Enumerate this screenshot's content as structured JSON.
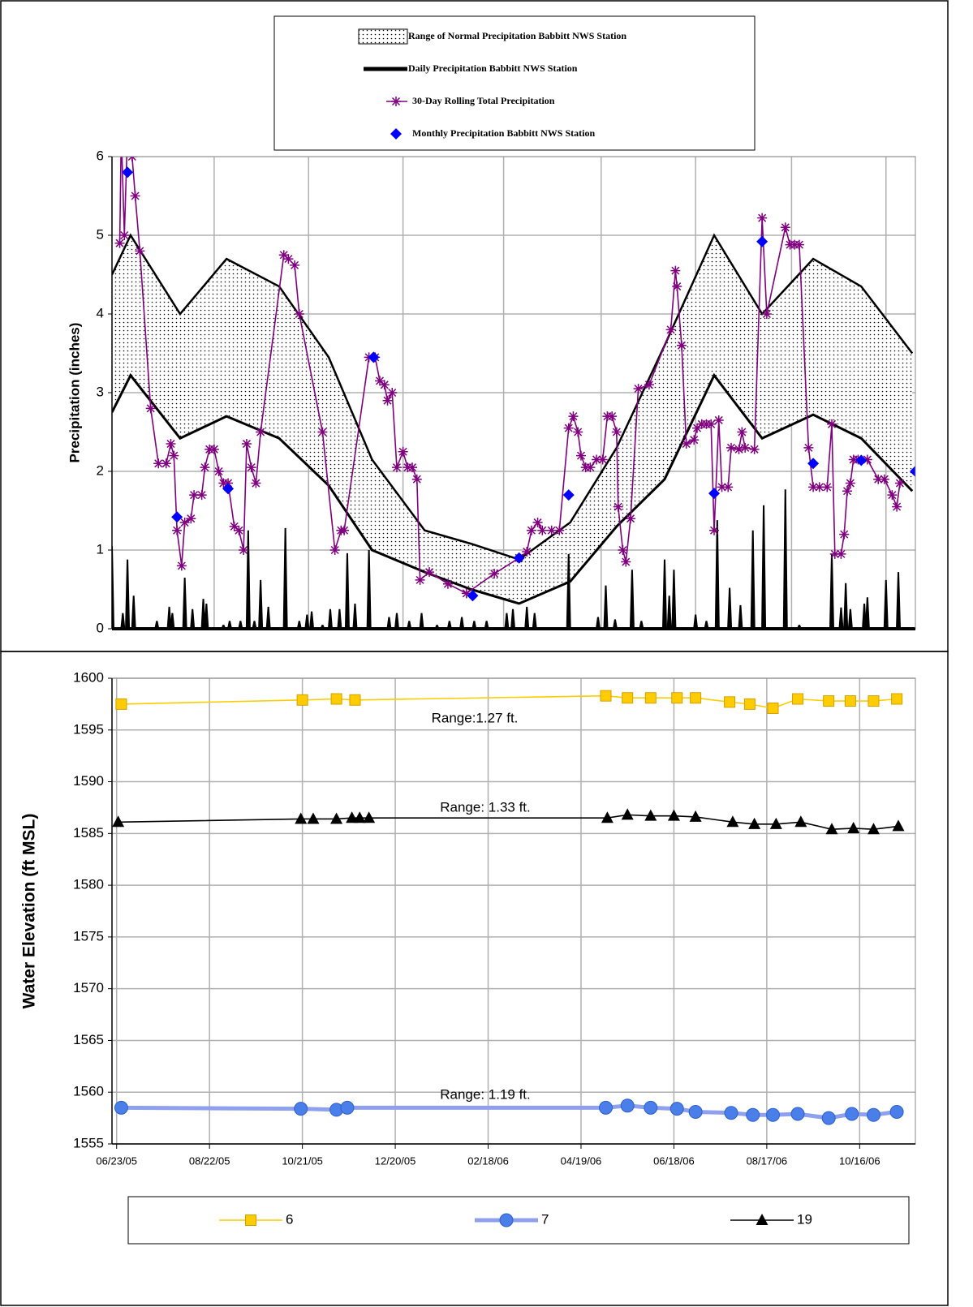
{
  "chart_data": [
    {
      "type": "combo",
      "y_label": "Precipitation (inches)",
      "xlim": [
        0,
        519
      ],
      "xticks": [
        66,
        127,
        188,
        253,
        316,
        377,
        439,
        500
      ],
      "ylim": [
        0,
        6
      ],
      "yticks": [
        0,
        1,
        2,
        3,
        4,
        5,
        6
      ],
      "grid": true,
      "series": [
        {
          "name": "Range of Normal Precipitation Babbitt NWS Station",
          "type": "band",
          "color": "#000000",
          "x": [
            0,
            12,
            44,
            74,
            108,
            140,
            168,
            202,
            232,
            263,
            296,
            326,
            357,
            389,
            420,
            453,
            484,
            517
          ],
          "upper": [
            4.5,
            5.0,
            4.0,
            4.7,
            4.35,
            3.45,
            2.15,
            1.25,
            1.08,
            0.88,
            1.35,
            2.3,
            3.6,
            5.0,
            4.0,
            4.7,
            4.35,
            3.5
          ],
          "lower": [
            2.75,
            3.22,
            2.42,
            2.7,
            2.42,
            1.82,
            1.0,
            0.72,
            0.5,
            0.32,
            0.6,
            1.3,
            1.9,
            3.22,
            2.42,
            2.72,
            2.42,
            1.75
          ]
        },
        {
          "name": "Daily Precipitation Babbitt NWS Station",
          "type": "bar",
          "color": "#000000",
          "x": [
            0,
            7,
            10,
            14,
            29,
            37,
            39,
            47,
            52,
            59,
            61,
            72,
            76,
            83,
            88,
            92,
            96,
            101,
            112,
            121,
            126,
            129,
            136,
            141,
            147,
            152,
            157,
            166,
            179,
            184,
            192,
            200,
            210,
            218,
            226,
            234,
            242,
            255,
            259,
            268,
            273,
            295,
            314,
            319,
            325,
            336,
            342,
            357,
            360,
            363,
            377,
            384,
            391,
            399,
            406,
            414,
            421,
            435,
            444,
            465,
            471,
            474,
            477,
            486,
            488,
            500,
            508
          ],
          "values": [
            1.05,
            0.2,
            0.88,
            0.42,
            0.1,
            0.28,
            0.2,
            0.65,
            0.25,
            0.38,
            0.32,
            0.05,
            0.1,
            0.1,
            1.25,
            0.1,
            0.62,
            0.28,
            1.28,
            0.1,
            0.18,
            0.22,
            0.05,
            0.25,
            0.25,
            0.96,
            0.32,
            1.0,
            0.15,
            0.2,
            0.1,
            0.2,
            0.05,
            0.1,
            0.15,
            0.1,
            0.1,
            0.2,
            0.25,
            0.28,
            0.2,
            0.95,
            0.15,
            0.55,
            0.12,
            0.75,
            0.1,
            0.88,
            0.42,
            0.75,
            0.18,
            0.1,
            1.38,
            0.52,
            0.3,
            1.25,
            1.57,
            1.77,
            0.05,
            0.95,
            0.27,
            0.58,
            0.25,
            0.32,
            0.4,
            0.62,
            0.72
          ]
        },
        {
          "name": "30-Day Rolling Total Precipitation",
          "type": "line",
          "color": "#800080",
          "marker": "asterisk",
          "x": [
            5,
            6,
            8,
            10,
            13,
            15,
            18,
            25,
            30,
            35,
            38,
            40,
            42,
            45,
            47,
            51,
            53,
            58,
            60,
            63,
            66,
            69,
            72,
            75,
            79,
            82,
            85,
            87,
            90,
            93,
            96,
            111,
            114,
            118,
            121,
            136,
            144,
            148,
            150,
            166,
            170,
            173,
            176,
            178,
            181,
            184,
            188,
            191,
            194,
            197,
            199,
            205,
            217,
            229,
            247,
            263,
            268,
            271,
            275,
            278,
            284,
            289,
            295,
            298,
            301,
            303,
            306,
            309,
            313,
            317,
            320,
            323,
            326,
            327,
            330,
            332,
            335,
            340,
            347,
            361,
            364,
            365,
            368,
            371,
            376,
            378,
            381,
            384,
            387,
            389,
            392,
            394,
            398,
            400,
            405,
            407,
            409,
            415,
            420,
            423,
            435,
            438,
            441,
            444,
            450,
            453,
            457,
            462,
            465,
            467,
            471,
            473,
            475,
            477,
            479,
            482,
            488,
            495,
            499,
            504,
            507,
            509
          ],
          "values": [
            4.9,
            6.3,
            5.0,
            6.3,
            6.0,
            5.5,
            4.8,
            2.8,
            2.1,
            2.1,
            2.35,
            2.2,
            1.25,
            0.8,
            1.35,
            1.4,
            1.7,
            1.7,
            2.05,
            2.28,
            2.28,
            2.0,
            1.85,
            1.85,
            1.3,
            1.25,
            1.0,
            2.35,
            2.05,
            1.85,
            2.5,
            4.75,
            4.7,
            4.62,
            4.0,
            2.5,
            1.0,
            1.25,
            1.25,
            3.45,
            3.45,
            3.15,
            3.1,
            2.9,
            3.0,
            2.05,
            2.25,
            2.05,
            2.05,
            1.9,
            0.62,
            0.72,
            0.57,
            0.45,
            0.7,
            0.9,
            0.98,
            1.25,
            1.35,
            1.25,
            1.25,
            1.25,
            2.55,
            2.7,
            2.5,
            2.2,
            2.05,
            2.05,
            2.15,
            2.15,
            2.7,
            2.7,
            2.5,
            1.55,
            1.0,
            0.85,
            1.4,
            3.05,
            3.1,
            3.8,
            4.55,
            4.35,
            3.6,
            2.35,
            2.4,
            2.55,
            2.6,
            2.6,
            2.6,
            1.25,
            2.65,
            1.8,
            1.8,
            2.3,
            2.28,
            2.5,
            2.3,
            2.28,
            5.22,
            4.0,
            5.1,
            4.88,
            4.88,
            4.88,
            2.3,
            1.8,
            1.8,
            1.8,
            2.6,
            0.95,
            0.95,
            1.2,
            1.75,
            1.85,
            2.15,
            2.15,
            2.15,
            1.9,
            1.9,
            1.7,
            1.55,
            1.85
          ]
        },
        {
          "name": "Monthly Precipitation Babbitt NWS Station",
          "type": "scatter",
          "color": "#0000ff",
          "marker": "diamond",
          "x": [
            10,
            42,
            75,
            169,
            233,
            263,
            295,
            389,
            420,
            453,
            484,
            519
          ],
          "values": [
            5.8,
            1.42,
            1.78,
            3.45,
            0.42,
            0.9,
            1.7,
            1.72,
            4.92,
            2.1,
            2.14,
            2.0
          ]
        }
      ]
    },
    {
      "type": "line",
      "y_label": "Water Elevation (ft MSL)",
      "xlim": [
        "06/20/05",
        "11/21/06"
      ],
      "xticks": [
        "06/23/05",
        "08/22/05",
        "10/21/05",
        "12/20/05",
        "02/18/06",
        "04/19/06",
        "06/18/06",
        "08/17/06",
        "10/16/06"
      ],
      "ylim": [
        1555,
        1600
      ],
      "yticks": [
        1555,
        1560,
        1565,
        1570,
        1575,
        1580,
        1585,
        1590,
        1595,
        1600
      ],
      "grid": true,
      "annotations": [
        "Range:1.27 ft.",
        "Range: 1.33 ft.",
        "Range: 1.19 ft."
      ],
      "series": [
        {
          "name": "6",
          "color": "#ffcc00",
          "marker": "square",
          "x": [
            "06/26/05",
            "10/21/05",
            "11/12/05",
            "11/24/05",
            "05/05/06",
            "05/19/06",
            "06/03/06",
            "06/20/06",
            "07/02/06",
            "07/24/06",
            "08/06/06",
            "08/21/06",
            "09/06/06",
            "09/26/06",
            "10/10/06",
            "10/25/06",
            "11/09/06"
          ],
          "values": [
            1597.5,
            1597.9,
            1598.0,
            1597.9,
            1598.3,
            1598.1,
            1598.1,
            1598.1,
            1598.1,
            1597.7,
            1597.5,
            1597.1,
            1598.0,
            1597.8,
            1597.8,
            1597.8,
            1598.0
          ]
        },
        {
          "name": "7",
          "color": "#4a7ee8",
          "marker": "circle",
          "x": [
            "06/26/05",
            "10/20/05",
            "11/12/05",
            "11/19/05",
            "05/05/06",
            "05/19/06",
            "06/03/06",
            "06/20/06",
            "07/02/06",
            "07/25/06",
            "08/08/06",
            "08/21/06",
            "09/06/06",
            "09/26/06",
            "10/11/06",
            "10/25/06",
            "11/09/06"
          ],
          "values": [
            1558.5,
            1558.4,
            1558.3,
            1558.5,
            1558.5,
            1558.7,
            1558.5,
            1558.4,
            1558.1,
            1558.0,
            1557.8,
            1557.8,
            1557.9,
            1557.5,
            1557.9,
            1557.8,
            1558.1
          ]
        },
        {
          "name": "19",
          "color": "#000000",
          "marker": "triangle",
          "x": [
            "06/24/05",
            "10/20/05",
            "10/28/05",
            "11/12/05",
            "11/22/05",
            "11/27/05",
            "12/03/05",
            "05/06/06",
            "05/19/06",
            "06/03/06",
            "06/18/06",
            "07/02/06",
            "07/26/06",
            "08/09/06",
            "08/23/06",
            "09/08/06",
            "09/28/06",
            "10/12/06",
            "10/25/06",
            "11/10/06"
          ],
          "values": [
            1586.1,
            1586.4,
            1586.4,
            1586.4,
            1586.5,
            1586.5,
            1586.5,
            1586.5,
            1586.8,
            1586.7,
            1586.7,
            1586.6,
            1586.1,
            1585.9,
            1585.9,
            1586.1,
            1585.4,
            1585.5,
            1585.4,
            1585.7
          ]
        }
      ]
    }
  ]
}
